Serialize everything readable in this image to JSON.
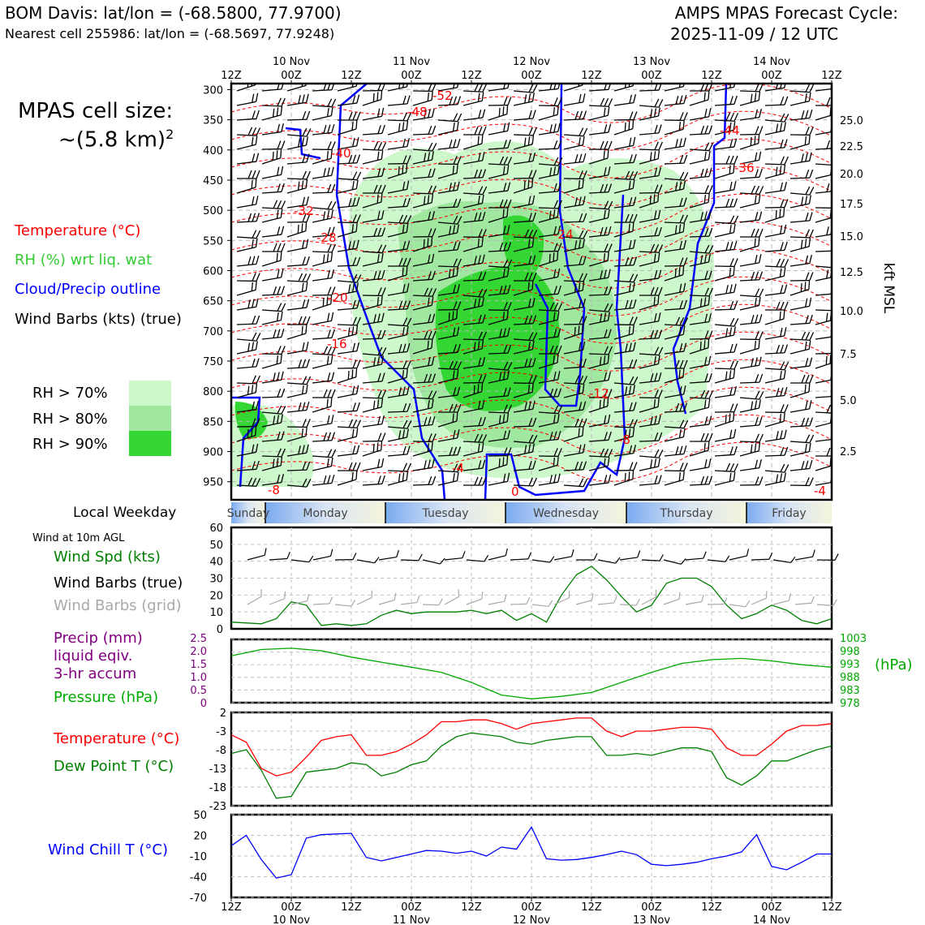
{
  "header": {
    "title": "BOM Davis: lat/lon = (-68.5800, 77.9700)",
    "nearest_cell": "Nearest cell 255986: lat/lon = (-68.5697, 77.9248)",
    "forecast_label": "AMPS MPAS Forecast Cycle:",
    "forecast_cycle": "2025-11-09 / 12 UTC"
  },
  "cell_size": {
    "label": "MPAS cell size:",
    "value": "~(5.8 km)",
    "exponent": "2"
  },
  "legend": {
    "temperature": "Temperature (°C)",
    "rh": "RH (%) wrt liq. wat",
    "cloud": "Cloud/Precip outline",
    "barbs": "Wind Barbs (kts) (true)",
    "rh70": "RH > 70%",
    "rh80": "RH > 80%",
    "rh90": "RH > 90%"
  },
  "colors": {
    "rh70": "#ccf8cc",
    "rh80": "#a0e8a0",
    "rh90": "#33d633",
    "temperature": "#ff0000",
    "cloud": "#0000ff",
    "wind_speed": "#008000",
    "dew_point": "#008000",
    "wind_chill": "#0000ff",
    "precip": "#800080",
    "pressure": "#00aa00",
    "grid_barbs": "#a9a9a9"
  },
  "time_axis": {
    "top_ticks": [
      "12Z",
      "00Z",
      "12Z",
      "00Z",
      "12Z",
      "00Z",
      "12Z",
      "00Z",
      "12Z",
      "00Z",
      "12Z"
    ],
    "dates": [
      "10 Nov",
      "11 Nov",
      "12 Nov",
      "13 Nov",
      "14 Nov"
    ]
  },
  "weekday_band": {
    "label": "Local Weekday",
    "days": [
      "Sunday",
      "Monday",
      "Tuesday",
      "Wednesday",
      "Thursday",
      "Friday"
    ]
  },
  "wind_panel": {
    "caption": "Wind at 10m AGL",
    "spd_label": "Wind Spd (kts)",
    "barbs_true_label": "Wind Barbs (true)",
    "barbs_grid_label": "Wind Barbs (grid)"
  },
  "precip_panel": {
    "precip_label_1": "Precip (mm)",
    "precip_label_2": "liquid eqiv.",
    "precip_label_3": "3-hr accum",
    "pressure_label": "Pressure (hPa)",
    "pressure_unit": "(hPa)"
  },
  "temp_panel": {
    "temp_label": "Temperature (°C)",
    "dew_label": "Dew Point T (°C)"
  },
  "chill_panel": {
    "label": "Wind Chill T (°C)"
  },
  "chart_data": [
    {
      "type": "heatmap",
      "name": "time-height cross-section",
      "xlabel": "",
      "ylabel": "",
      "ylabel_right": "kft MSL",
      "y_ticks": [
        300,
        350,
        400,
        450,
        500,
        550,
        600,
        650,
        700,
        750,
        800,
        850,
        900,
        950
      ],
      "y_ticks_right": [
        "25.0",
        "22.5",
        "20.0",
        "17.5",
        "15.0",
        "12.5",
        "10.0",
        "7.5",
        "5.0",
        "2.5"
      ],
      "temperature_labels": [
        "-52",
        "-48",
        "-40",
        "-44",
        "-36",
        "-32",
        "-28",
        "-24",
        "-20",
        "-16",
        "-12",
        "-8",
        "-4",
        "0",
        "-8",
        "-4"
      ]
    },
    {
      "type": "line",
      "name": "Wind Spd (kts)",
      "ylim": [
        0,
        60
      ],
      "y_ticks": [
        0,
        10,
        20,
        30,
        40,
        50,
        60
      ],
      "x_hours": [
        0,
        6,
        9,
        12,
        15,
        18,
        21,
        24,
        27,
        30,
        33,
        36,
        39,
        42,
        45,
        48,
        51,
        54,
        57,
        60,
        63,
        66,
        69,
        72,
        75,
        78,
        81,
        84,
        87,
        90,
        93,
        96,
        99,
        102,
        105,
        108,
        111,
        114,
        117,
        120
      ],
      "values": [
        4,
        3,
        6,
        16,
        14,
        2,
        3,
        2,
        3,
        8,
        11,
        9,
        10,
        10,
        10,
        11,
        9,
        11,
        5,
        9,
        4,
        20,
        32,
        37,
        29,
        19,
        10,
        14,
        27,
        30,
        30,
        25,
        14,
        6,
        9,
        14,
        11,
        5,
        3,
        6
      ]
    },
    {
      "type": "line",
      "name": "Pressure (hPa)",
      "ylim": [
        978,
        1003
      ],
      "y_ticks_left": [
        "2.5",
        "2.0",
        "1.5",
        "1.0",
        "0.5",
        "0"
      ],
      "y_ticks_right": [
        1003,
        998,
        993,
        988,
        983,
        978
      ],
      "x_hours": [
        0,
        6,
        12,
        18,
        24,
        30,
        36,
        42,
        48,
        54,
        60,
        66,
        72,
        78,
        84,
        90,
        96,
        102,
        108,
        114,
        120
      ],
      "values": [
        996.5,
        999,
        999.5,
        998.5,
        996,
        994,
        992,
        990,
        986,
        981,
        979.5,
        980.5,
        982,
        986,
        990,
        993.5,
        995,
        995.5,
        994.5,
        993,
        992
      ]
    },
    {
      "type": "line",
      "name": "Temperature / Dew Point (°C)",
      "ylim": [
        -23,
        2
      ],
      "y_ticks": [
        2,
        -3,
        -8,
        -13,
        -18,
        -23
      ],
      "series": [
        {
          "name": "Temperature (°C)",
          "x_hours": [
            0,
            3,
            6,
            9,
            12,
            15,
            18,
            21,
            24,
            27,
            30,
            33,
            36,
            39,
            42,
            45,
            48,
            51,
            54,
            57,
            60,
            63,
            66,
            69,
            72,
            75,
            78,
            81,
            84,
            87,
            90,
            93,
            96,
            99,
            102,
            105,
            108,
            111,
            114,
            117,
            120
          ],
          "values": [
            -4,
            -6,
            -13,
            -15,
            -14,
            -10,
            -5.5,
            -4.5,
            -4,
            -9.5,
            -9.5,
            -8.5,
            -6.5,
            -4,
            -0.5,
            -0.5,
            0,
            0,
            -1,
            -2.5,
            -1,
            -0.5,
            0,
            0.5,
            0.5,
            -3,
            -4.5,
            -3,
            -3,
            -2.5,
            -2,
            -2,
            -2.5,
            -7.5,
            -9.5,
            -9.5,
            -6.5,
            -3,
            -1.5,
            -1.5,
            -1
          ]
        },
        {
          "name": "Dew Point T (°C)",
          "x_hours": [
            0,
            3,
            6,
            9,
            12,
            15,
            18,
            21,
            24,
            27,
            30,
            33,
            36,
            39,
            42,
            45,
            48,
            51,
            54,
            57,
            60,
            63,
            66,
            69,
            72,
            75,
            78,
            81,
            84,
            87,
            90,
            93,
            96,
            99,
            102,
            105,
            108,
            111,
            114,
            117,
            120
          ],
          "values": [
            -9,
            -8,
            -13.5,
            -21,
            -20.5,
            -14,
            -13.5,
            -13,
            -11.5,
            -12,
            -15,
            -14,
            -12,
            -11,
            -7,
            -4.5,
            -3.5,
            -4,
            -4.5,
            -6,
            -6.5,
            -5.5,
            -5,
            -4.5,
            -4.5,
            -9.5,
            -9.5,
            -9,
            -9.5,
            -8.5,
            -7.5,
            -7.5,
            -8.5,
            -15.5,
            -17.5,
            -15,
            -11,
            -11,
            -9.5,
            -8,
            -7
          ]
        }
      ]
    },
    {
      "type": "line",
      "name": "Wind Chill T (°C)",
      "ylim": [
        -70,
        50
      ],
      "y_ticks": [
        50,
        20,
        -10,
        -40,
        -70
      ],
      "x_hours": [
        0,
        3,
        6,
        9,
        12,
        15,
        18,
        21,
        24,
        27,
        30,
        33,
        36,
        39,
        42,
        45,
        48,
        51,
        54,
        57,
        60,
        63,
        66,
        69,
        72,
        75,
        78,
        81,
        84,
        87,
        90,
        93,
        96,
        99,
        102,
        105,
        108,
        111,
        114,
        117,
        120
      ],
      "values": [
        5,
        20,
        -15,
        -42,
        -37,
        16,
        21,
        22,
        23,
        -12,
        -17,
        -12,
        -7,
        -2,
        -3,
        -6,
        -3,
        -10,
        3,
        0,
        32,
        -14,
        -16,
        -15,
        -12,
        -8,
        -3,
        -8,
        -22,
        -24,
        -22,
        -19,
        -14,
        -10,
        -4,
        21,
        -25,
        -30,
        -19,
        -7,
        -7
      ]
    }
  ]
}
